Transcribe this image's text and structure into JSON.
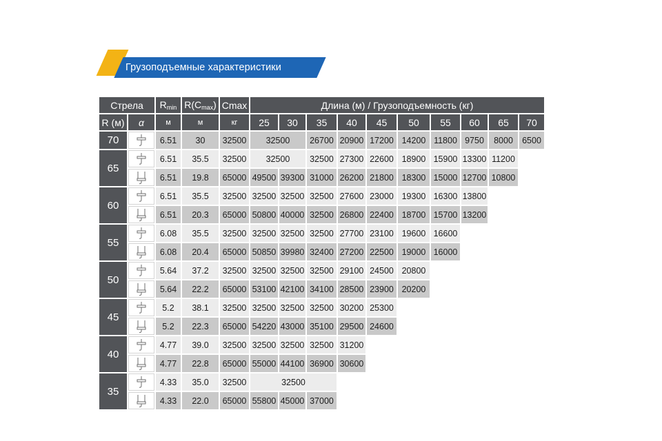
{
  "header": {
    "title": "Грузоподъемные характеристики"
  },
  "table": {
    "head1": {
      "boom": "Стрела",
      "rmin_main": "R",
      "rmin_sub": "min",
      "rcmax_a": "R(C",
      "rcmax_sub": "max",
      "rcmax_b": ")",
      "cmax": "Cmax",
      "length": "Длина (м) / Грузоподъемность (кг)"
    },
    "head2": {
      "r": "R",
      "r_unit": "(м)",
      "alpha": "α",
      "m1": "м",
      "m2": "м",
      "kg": "кг"
    },
    "lengths": [
      "25",
      "30",
      "35",
      "40",
      "45",
      "50",
      "55",
      "60",
      "65",
      "70"
    ],
    "groups": [
      {
        "boom": "70",
        "rows": [
          {
            "rmin": "6.51",
            "rc": "30",
            "cmax": "32500",
            "cells": [
              {
                "v": "32500",
                "span": 2
              },
              {
                "v": "26700"
              },
              {
                "v": "20900"
              },
              {
                "v": "17200"
              },
              {
                "v": "14200"
              },
              {
                "v": "11800"
              },
              {
                "v": "9750"
              },
              {
                "v": "8000"
              },
              {
                "v": "6500"
              }
            ]
          }
        ]
      },
      {
        "boom": "65",
        "rows": [
          {
            "rmin": "6.51",
            "rc": "35.5",
            "cmax": "32500",
            "cells": [
              {
                "v": "32500",
                "span": 2
              },
              {
                "v": "32500"
              },
              {
                "v": "27300"
              },
              {
                "v": "22600"
              },
              {
                "v": "18900"
              },
              {
                "v": "15900"
              },
              {
                "v": "13300"
              },
              {
                "v": "11200"
              },
              {
                "v": ""
              }
            ]
          },
          {
            "rmin": "6.51",
            "rc": "19.8",
            "cmax": "65000",
            "cells": [
              {
                "v": "49500"
              },
              {
                "v": "39300"
              },
              {
                "v": "31000"
              },
              {
                "v": "26200"
              },
              {
                "v": "21800"
              },
              {
                "v": "18300"
              },
              {
                "v": "15000"
              },
              {
                "v": "12700"
              },
              {
                "v": "10800"
              },
              {
                "v": ""
              }
            ]
          }
        ]
      },
      {
        "boom": "60",
        "rows": [
          {
            "rmin": "6.51",
            "rc": "35.5",
            "cmax": "32500",
            "cells": [
              {
                "v": "32500"
              },
              {
                "v": "32500"
              },
              {
                "v": "32500"
              },
              {
                "v": "27600"
              },
              {
                "v": "23000"
              },
              {
                "v": "19300"
              },
              {
                "v": "16300"
              },
              {
                "v": "13800"
              },
              {
                "v": ""
              },
              {
                "v": ""
              }
            ]
          },
          {
            "rmin": "6.51",
            "rc": "20.3",
            "cmax": "65000",
            "cells": [
              {
                "v": "50800"
              },
              {
                "v": "40000"
              },
              {
                "v": "32500"
              },
              {
                "v": "26800"
              },
              {
                "v": "22400"
              },
              {
                "v": "18700"
              },
              {
                "v": "15700"
              },
              {
                "v": "13200"
              },
              {
                "v": ""
              },
              {
                "v": ""
              }
            ]
          }
        ]
      },
      {
        "boom": "55",
        "rows": [
          {
            "rmin": "6.08",
            "rc": "35.5",
            "cmax": "32500",
            "cells": [
              {
                "v": "32500"
              },
              {
                "v": "32500"
              },
              {
                "v": "32500"
              },
              {
                "v": "27700"
              },
              {
                "v": "23100"
              },
              {
                "v": "19600"
              },
              {
                "v": "16600"
              },
              {
                "v": ""
              },
              {
                "v": ""
              },
              {
                "v": ""
              }
            ]
          },
          {
            "rmin": "6.08",
            "rc": "20.4",
            "cmax": "65000",
            "cells": [
              {
                "v": "50850"
              },
              {
                "v": "39980"
              },
              {
                "v": "32400"
              },
              {
                "v": "27200"
              },
              {
                "v": "22500"
              },
              {
                "v": "19000"
              },
              {
                "v": "16000"
              },
              {
                "v": ""
              },
              {
                "v": ""
              },
              {
                "v": ""
              }
            ]
          }
        ]
      },
      {
        "boom": "50",
        "rows": [
          {
            "rmin": "5.64",
            "rc": "37.2",
            "cmax": "32500",
            "cells": [
              {
                "v": "32500"
              },
              {
                "v": "32500"
              },
              {
                "v": "32500"
              },
              {
                "v": "29100"
              },
              {
                "v": "24500"
              },
              {
                "v": "20800"
              },
              {
                "v": ""
              },
              {
                "v": ""
              },
              {
                "v": ""
              },
              {
                "v": ""
              }
            ]
          },
          {
            "rmin": "5.64",
            "rc": "22.2",
            "cmax": "65000",
            "cells": [
              {
                "v": "53100"
              },
              {
                "v": "42100"
              },
              {
                "v": "34100"
              },
              {
                "v": "28500"
              },
              {
                "v": "23900"
              },
              {
                "v": "20200"
              },
              {
                "v": ""
              },
              {
                "v": ""
              },
              {
                "v": ""
              },
              {
                "v": ""
              }
            ]
          }
        ]
      },
      {
        "boom": "45",
        "rows": [
          {
            "rmin": "5.2",
            "rc": "38.1",
            "cmax": "32500",
            "cells": [
              {
                "v": "32500"
              },
              {
                "v": "32500"
              },
              {
                "v": "32500"
              },
              {
                "v": "30200"
              },
              {
                "v": "25300"
              },
              {
                "v": ""
              },
              {
                "v": ""
              },
              {
                "v": ""
              },
              {
                "v": ""
              },
              {
                "v": ""
              }
            ]
          },
          {
            "rmin": "5.2",
            "rc": "22.3",
            "cmax": "65000",
            "cells": [
              {
                "v": "54220"
              },
              {
                "v": "43000"
              },
              {
                "v": "35100"
              },
              {
                "v": "29500"
              },
              {
                "v": "24600"
              },
              {
                "v": ""
              },
              {
                "v": ""
              },
              {
                "v": ""
              },
              {
                "v": ""
              },
              {
                "v": ""
              }
            ]
          }
        ]
      },
      {
        "boom": "40",
        "rows": [
          {
            "rmin": "4.77",
            "rc": "39.0",
            "cmax": "32500",
            "cells": [
              {
                "v": "32500"
              },
              {
                "v": "32500"
              },
              {
                "v": "32500"
              },
              {
                "v": "31200"
              },
              {
                "v": ""
              },
              {
                "v": ""
              },
              {
                "v": ""
              },
              {
                "v": ""
              },
              {
                "v": ""
              },
              {
                "v": ""
              }
            ]
          },
          {
            "rmin": "4.77",
            "rc": "22.8",
            "cmax": "65000",
            "cells": [
              {
                "v": "55000"
              },
              {
                "v": "44100"
              },
              {
                "v": "36900"
              },
              {
                "v": "30600"
              },
              {
                "v": ""
              },
              {
                "v": ""
              },
              {
                "v": ""
              },
              {
                "v": ""
              },
              {
                "v": ""
              },
              {
                "v": ""
              }
            ]
          }
        ]
      },
      {
        "boom": "35",
        "rows": [
          {
            "rmin": "4.33",
            "rc": "35.0",
            "cmax": "32500",
            "cells": [
              {
                "v": "32500",
                "span": 3
              },
              {
                "v": ""
              },
              {
                "v": ""
              },
              {
                "v": ""
              },
              {
                "v": ""
              },
              {
                "v": ""
              },
              {
                "v": ""
              },
              {
                "v": ""
              }
            ]
          },
          {
            "rmin": "4.33",
            "rc": "22.0",
            "cmax": "65000",
            "cells": [
              {
                "v": "55800"
              },
              {
                "v": "45000"
              },
              {
                "v": "37000"
              },
              {
                "v": ""
              },
              {
                "v": ""
              },
              {
                "v": ""
              },
              {
                "v": ""
              },
              {
                "v": ""
              },
              {
                "v": ""
              },
              {
                "v": ""
              }
            ]
          }
        ]
      }
    ]
  },
  "icons": {
    "reeving": "hook-block-icon"
  },
  "colors": {
    "header_bg": "#525458",
    "row_dark": "#c9c9c9",
    "row_light": "#ececec",
    "banner_blue": "#1e66b5",
    "banner_yellow": "#f3b315"
  }
}
